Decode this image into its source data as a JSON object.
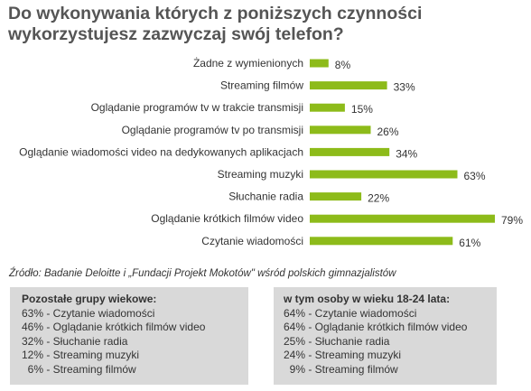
{
  "title_lines": [
    "Do wykonywania których z poniższych czynności",
    "wykorzystujesz zazwyczaj swój telefon?"
  ],
  "chart_data": {
    "type": "bar",
    "orientation": "horizontal",
    "categories": [
      "Żadne z wymienionych",
      "Streaming filmów",
      "Oglądanie programów tv w trakcie transmisji",
      "Oglądanie programów tv po transmisji",
      "Oglądanie wiadomości video na dedykowanych aplikacjach",
      "Streaming muzyki",
      "Słuchanie radia",
      "Oglądanie krótkich filmów video",
      "Czytanie wiadomości"
    ],
    "values": [
      8,
      33,
      15,
      26,
      34,
      63,
      22,
      79,
      61
    ],
    "value_labels": [
      "8%",
      "33%",
      "15%",
      "26%",
      "34%",
      "63%",
      "22%",
      "79%",
      "61%"
    ],
    "xlim": [
      0,
      80
    ],
    "grid": false,
    "bar_color": "#8dbb1a"
  },
  "source": "Źródło: Badanie Deloitte i „Fundacji Projekt Mokotów\" wśród polskich gimnazjalistów",
  "box_left": {
    "heading": "Pozostałe grupy wiekowe:",
    "rows": [
      "63% - Czytanie wiadomości",
      "46% - Oglądanie krótkich filmów video",
      "32% - Słuchanie radia",
      "12% - Streaming muzyki",
      "  6% - Streaming filmów"
    ]
  },
  "box_right": {
    "heading": "w tym osoby w wieku 18-24 lata:",
    "rows": [
      "64% - Czytanie wiadomości",
      "64% - Oglądanie krótkich filmów video",
      "25% - Słuchanie radia",
      "24% - Streaming muzyki",
      "  9% - Streaming filmów"
    ]
  }
}
